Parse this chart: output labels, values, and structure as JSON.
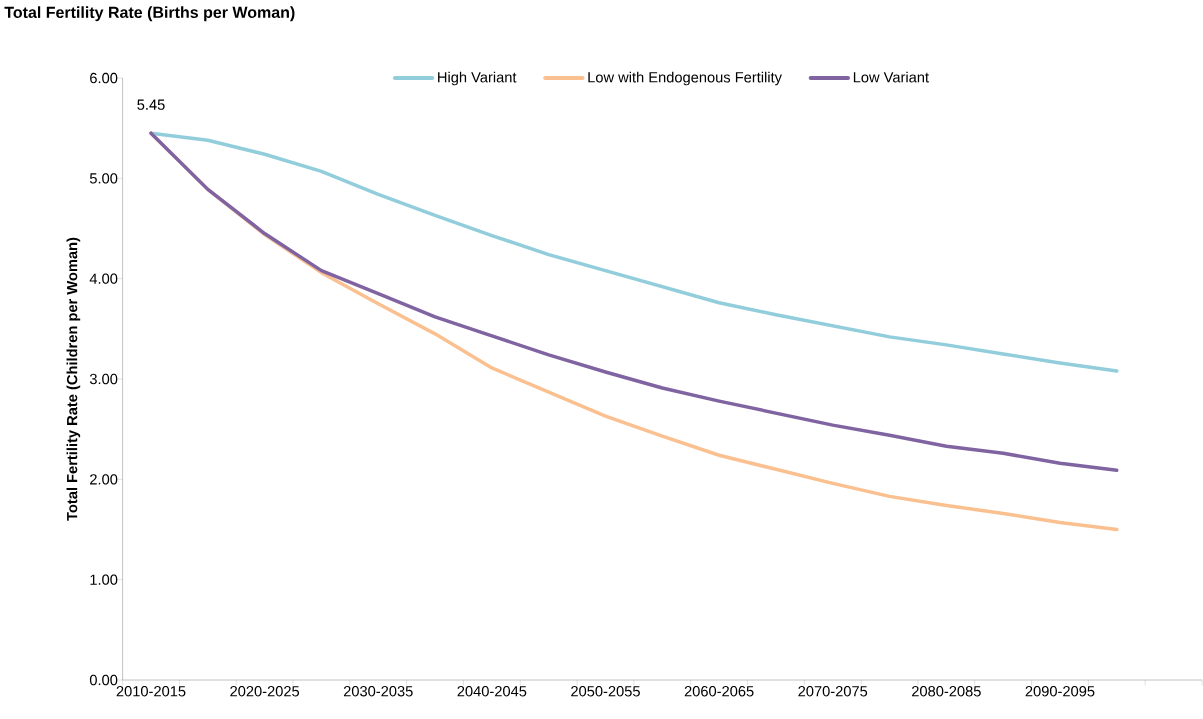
{
  "chart_data": {
    "type": "line",
    "title": "Total Fertility Rate (Births per Woman)",
    "ylabel": "Total Fertility Rate (Children per Woman)",
    "categories": [
      "2010-2015",
      null,
      "2020-2025",
      null,
      "2030-2035",
      null,
      "2040-2045",
      null,
      "2050-2055",
      null,
      "2060-2065",
      null,
      "2070-2075",
      null,
      "2080-2085",
      null,
      "2090-2095",
      null,
      null
    ],
    "series": [
      {
        "name": "High Variant",
        "color": "#92cddc",
        "values": [
          5.45,
          5.38,
          5.24,
          5.07,
          4.84,
          4.63,
          4.43,
          4.24,
          4.08,
          3.92,
          3.76,
          3.64,
          3.53,
          3.42,
          3.34,
          3.25,
          3.16,
          3.08,
          null
        ]
      },
      {
        "name": "Low with Endogenous Fertility",
        "color": "#fac090",
        "values": [
          5.45,
          4.89,
          4.44,
          4.06,
          3.75,
          3.45,
          3.11,
          2.87,
          2.63,
          2.43,
          2.24,
          2.1,
          1.96,
          1.83,
          1.74,
          1.66,
          1.57,
          1.5,
          null
        ]
      },
      {
        "name": "Low Variant",
        "color": "#8064a2",
        "values": [
          5.45,
          4.89,
          4.45,
          4.08,
          3.85,
          3.62,
          3.43,
          3.24,
          3.07,
          2.91,
          2.78,
          2.66,
          2.54,
          2.44,
          2.33,
          2.26,
          2.16,
          2.09,
          null
        ]
      }
    ],
    "ylim": [
      0,
      6
    ],
    "yticks": [
      {
        "value": 0,
        "label": "0.00"
      },
      {
        "value": 1,
        "label": "1.00"
      },
      {
        "value": 2,
        "label": "2.00"
      },
      {
        "value": 3,
        "label": "3.00"
      },
      {
        "value": 4,
        "label": "4.00"
      },
      {
        "value": 5,
        "label": "5.00"
      },
      {
        "value": 6,
        "label": "6.00"
      }
    ],
    "annotations": [
      {
        "text": "5.45",
        "x": "2010-2015",
        "y": 5.45
      }
    ],
    "grid": false,
    "legend": "top",
    "marker": "none",
    "line_style": "solid"
  }
}
